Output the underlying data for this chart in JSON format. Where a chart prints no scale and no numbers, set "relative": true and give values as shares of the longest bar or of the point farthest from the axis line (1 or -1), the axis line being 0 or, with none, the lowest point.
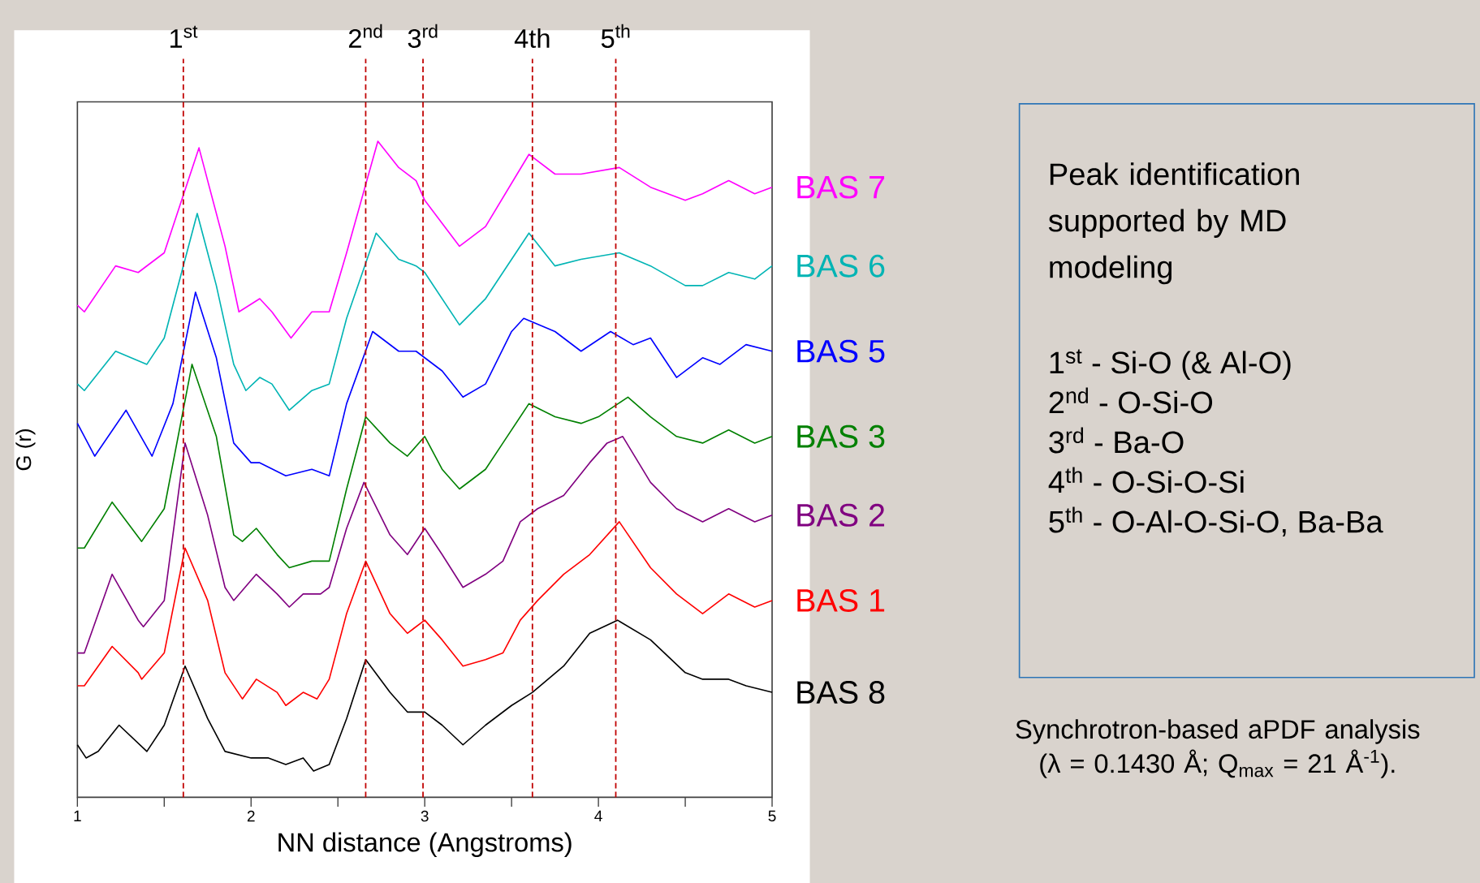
{
  "chart_data": {
    "type": "line",
    "xlabel": "NN distance (Angstroms)",
    "ylabel": "G (r)",
    "relative": true,
    "xlim": [
      1,
      5
    ],
    "xticks": [
      1,
      2,
      3,
      4,
      5
    ],
    "series": [
      {
        "name": "BAS 7",
        "color": "#ff00ff",
        "x": [
          1,
          1.04,
          1.22,
          1.35,
          1.5,
          1.7,
          1.85,
          1.93,
          2.05,
          2.12,
          2.23,
          2.35,
          2.45,
          2.55,
          2.73,
          2.85,
          2.95,
          3.0,
          3.2,
          3.35,
          3.6,
          3.75,
          3.9,
          4.12,
          4.3,
          4.5,
          4.6,
          4.75,
          4.9,
          5
        ],
        "values": [
          0.75,
          0.74,
          0.81,
          0.8,
          0.83,
          0.99,
          0.84,
          0.74,
          0.76,
          0.74,
          0.7,
          0.74,
          0.74,
          0.83,
          1.0,
          0.96,
          0.94,
          0.91,
          0.84,
          0.87,
          0.98,
          0.95,
          0.95,
          0.96,
          0.93,
          0.91,
          0.92,
          0.94,
          0.92,
          0.93
        ]
      },
      {
        "name": "BAS 6",
        "color": "#00b4b4",
        "x": [
          1,
          1.04,
          1.22,
          1.4,
          1.5,
          1.69,
          1.8,
          1.9,
          1.97,
          2.05,
          2.12,
          2.22,
          2.35,
          2.45,
          2.55,
          2.72,
          2.85,
          2.95,
          3.0,
          3.2,
          3.35,
          3.6,
          3.75,
          3.9,
          4.12,
          4.3,
          4.5,
          4.6,
          4.75,
          4.9,
          5
        ],
        "values": [
          0.63,
          0.62,
          0.68,
          0.66,
          0.7,
          0.89,
          0.78,
          0.66,
          0.62,
          0.64,
          0.63,
          0.59,
          0.62,
          0.63,
          0.73,
          0.86,
          0.82,
          0.81,
          0.8,
          0.72,
          0.76,
          0.86,
          0.81,
          0.82,
          0.83,
          0.81,
          0.78,
          0.78,
          0.8,
          0.79,
          0.81
        ]
      },
      {
        "name": "BAS 5",
        "color": "#0000ff",
        "x": [
          1,
          1.1,
          1.28,
          1.43,
          1.55,
          1.68,
          1.8,
          1.9,
          2.0,
          2.05,
          2.2,
          2.35,
          2.45,
          2.55,
          2.7,
          2.85,
          2.95,
          3.1,
          3.22,
          3.35,
          3.5,
          3.57,
          3.75,
          3.9,
          4.07,
          4.2,
          4.3,
          4.45,
          4.6,
          4.7,
          4.85,
          5
        ],
        "values": [
          0.57,
          0.52,
          0.59,
          0.52,
          0.6,
          0.77,
          0.67,
          0.54,
          0.51,
          0.51,
          0.49,
          0.5,
          0.49,
          0.6,
          0.71,
          0.68,
          0.68,
          0.65,
          0.61,
          0.63,
          0.71,
          0.73,
          0.71,
          0.68,
          0.71,
          0.69,
          0.7,
          0.64,
          0.67,
          0.66,
          0.69,
          0.68
        ]
      },
      {
        "name": "BAS 3",
        "color": "#008000",
        "x": [
          1,
          1.04,
          1.2,
          1.37,
          1.5,
          1.66,
          1.8,
          1.9,
          1.95,
          2.03,
          2.15,
          2.22,
          2.35,
          2.45,
          2.55,
          2.66,
          2.8,
          2.9,
          3.0,
          3.1,
          3.2,
          3.35,
          3.45,
          3.6,
          3.75,
          3.9,
          4.0,
          4.17,
          4.3,
          4.45,
          4.6,
          4.75,
          4.9,
          5
        ],
        "values": [
          0.38,
          0.38,
          0.45,
          0.39,
          0.44,
          0.66,
          0.55,
          0.4,
          0.39,
          0.41,
          0.37,
          0.35,
          0.36,
          0.36,
          0.47,
          0.58,
          0.54,
          0.52,
          0.55,
          0.5,
          0.47,
          0.5,
          0.54,
          0.6,
          0.58,
          0.57,
          0.58,
          0.61,
          0.58,
          0.55,
          0.54,
          0.56,
          0.54,
          0.55
        ]
      },
      {
        "name": "BAS 2",
        "color": "#800080",
        "x": [
          1,
          1.04,
          1.2,
          1.35,
          1.38,
          1.5,
          1.62,
          1.75,
          1.85,
          1.9,
          2.03,
          2.15,
          2.22,
          2.3,
          2.4,
          2.45,
          2.55,
          2.65,
          2.8,
          2.9,
          3.0,
          3.1,
          3.22,
          3.35,
          3.45,
          3.55,
          3.65,
          3.8,
          3.95,
          4.05,
          4.14,
          4.3,
          4.45,
          4.6,
          4.75,
          4.9,
          5
        ],
        "values": [
          0.22,
          0.22,
          0.34,
          0.27,
          0.26,
          0.3,
          0.54,
          0.43,
          0.32,
          0.3,
          0.34,
          0.31,
          0.29,
          0.31,
          0.31,
          0.32,
          0.41,
          0.48,
          0.4,
          0.37,
          0.41,
          0.37,
          0.32,
          0.34,
          0.36,
          0.42,
          0.44,
          0.46,
          0.51,
          0.54,
          0.55,
          0.48,
          0.44,
          0.42,
          0.44,
          0.42,
          0.43
        ]
      },
      {
        "name": "BAS 1",
        "color": "#ff0000",
        "x": [
          1,
          1.04,
          1.2,
          1.35,
          1.37,
          1.5,
          1.62,
          1.75,
          1.85,
          1.95,
          2.03,
          2.15,
          2.2,
          2.3,
          2.38,
          2.45,
          2.55,
          2.66,
          2.8,
          2.9,
          3.0,
          3.1,
          3.22,
          3.35,
          3.45,
          3.55,
          3.65,
          3.8,
          3.95,
          4.12,
          4.3,
          4.45,
          4.6,
          4.75,
          4.9,
          5
        ],
        "values": [
          0.17,
          0.17,
          0.23,
          0.19,
          0.18,
          0.22,
          0.38,
          0.3,
          0.19,
          0.15,
          0.18,
          0.16,
          0.14,
          0.16,
          0.15,
          0.18,
          0.28,
          0.36,
          0.28,
          0.25,
          0.27,
          0.24,
          0.2,
          0.21,
          0.22,
          0.27,
          0.3,
          0.34,
          0.37,
          0.42,
          0.35,
          0.31,
          0.28,
          0.31,
          0.29,
          0.3
        ]
      },
      {
        "name": "BAS 8",
        "color": "#000000",
        "x": [
          1,
          1.05,
          1.12,
          1.24,
          1.4,
          1.5,
          1.62,
          1.75,
          1.85,
          2.0,
          2.1,
          2.2,
          2.3,
          2.36,
          2.45,
          2.55,
          2.66,
          2.8,
          2.9,
          3.0,
          3.1,
          3.22,
          3.35,
          3.5,
          3.62,
          3.8,
          3.95,
          4.11,
          4.3,
          4.5,
          4.6,
          4.75,
          4.85,
          5
        ],
        "values": [
          0.08,
          0.06,
          0.07,
          0.11,
          0.07,
          0.11,
          0.2,
          0.12,
          0.07,
          0.06,
          0.06,
          0.05,
          0.06,
          0.04,
          0.05,
          0.12,
          0.21,
          0.16,
          0.13,
          0.13,
          0.11,
          0.08,
          0.11,
          0.14,
          0.16,
          0.2,
          0.25,
          0.27,
          0.24,
          0.19,
          0.18,
          0.18,
          0.17,
          0.16
        ]
      }
    ],
    "ref_lines": [
      {
        "axis": "x",
        "value": 1.61,
        "label": "1$^{st}$",
        "color": "#c00000",
        "line_style": "dashed"
      },
      {
        "axis": "x",
        "value": 2.66,
        "label": "2$^{nd}$",
        "color": "#c00000",
        "line_style": "dashed"
      },
      {
        "axis": "x",
        "value": 2.99,
        "label": "3$^{rd}$",
        "color": "#c00000",
        "line_style": "dashed"
      },
      {
        "axis": "x",
        "value": 3.62,
        "label": "4th",
        "color": "#c00000",
        "line_style": "dashed"
      },
      {
        "axis": "x",
        "value": 4.1,
        "label": "5$^{th}$",
        "color": "#c00000",
        "line_style": "dashed"
      }
    ],
    "annotations": [
      "Peak identification supported by MD modeling",
      "1$^{st}$ - Si-O (& Al-O)",
      "2$^{nd}$ - O-Si-O",
      "3$^{rd}$ - Ba-O",
      "4$^{th}$  - O-Si-O-Si",
      "5$^{th}$ - O-Al-O-Si-O, Ba-Ba",
      "Synchrotron-based aPDF analysis (λ = 0.1430 Å; Q$_{max}$ = 21 Å$^{-1}$)."
    ]
  }
}
